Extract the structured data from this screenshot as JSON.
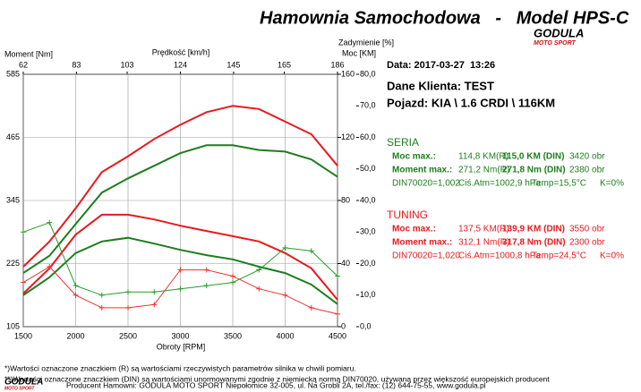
{
  "chart_data": {
    "type": "line",
    "title": "Hamownia Samochodowa   -   Model HPS-C",
    "x_label": "Obroty [RPM]",
    "y_label": "Moment [Nm]",
    "x2_label": "Prędkość [km/h]",
    "y2_label": "Moc [KM]",
    "y3_label": "Zadymienie [%]",
    "x": [
      1500,
      1750,
      2000,
      2250,
      2500,
      2750,
      3000,
      3250,
      3500,
      3750,
      4000,
      4250,
      4500
    ],
    "xlim": [
      1500,
      4500
    ],
    "xticks": [
      1500,
      2000,
      2500,
      3000,
      3500,
      4000,
      4500
    ],
    "x2lim": [
      62,
      186
    ],
    "x2ticks": [
      62,
      83,
      103,
      124,
      145,
      165,
      186
    ],
    "ylim": [
      105,
      585
    ],
    "yticks": [
      105,
      225,
      345,
      465,
      585
    ],
    "y2lim": [
      0,
      160
    ],
    "y2ticks": [
      0,
      40,
      80,
      120,
      160
    ],
    "y3lim": [
      0,
      80
    ],
    "y3ticks": [
      {
        "value": 0,
        "label": "0,0"
      },
      {
        "value": 10,
        "label": "10,0"
      },
      {
        "value": 20,
        "label": "20,0"
      },
      {
        "value": 30,
        "label": "30,0"
      },
      {
        "value": 40,
        "label": "40,0"
      },
      {
        "value": 50,
        "label": "50,0"
      },
      {
        "value": 60,
        "label": "60,0"
      },
      {
        "value": 70,
        "label": "70,0"
      },
      {
        "value": 80,
        "label": "80,0"
      }
    ],
    "grid": true,
    "series": [
      {
        "color": "#e8191e",
        "axis": "y2",
        "values": [
          38,
          54,
          75,
          98,
          108,
          119,
          128,
          136,
          140,
          138,
          130,
          122,
          102
        ]
      },
      {
        "color": "#1e7d1e",
        "axis": "y2",
        "values": [
          34,
          45,
          65,
          85,
          94,
          102,
          110,
          115,
          115,
          112,
          111,
          106,
          95
        ]
      },
      {
        "color": "#e8191e",
        "axis": "y",
        "values": [
          168,
          216,
          280,
          318,
          318,
          309,
          297,
          287,
          277,
          267,
          245,
          216,
          156
        ]
      },
      {
        "color": "#1e7d1e",
        "axis": "y",
        "values": [
          165,
          199,
          245,
          267,
          274,
          263,
          251,
          241,
          233,
          219,
          207,
          185,
          148
        ]
      },
      {
        "color": "#2a9a2a",
        "axis": "y3",
        "marker": "+",
        "values": [
          30,
          33,
          13,
          10,
          11,
          11,
          12,
          13,
          14,
          18,
          25,
          24,
          16
        ]
      },
      {
        "color": "#f03030",
        "axis": "y3",
        "marker": "+",
        "values": [
          14,
          19,
          10,
          6,
          6,
          7,
          18,
          18,
          16,
          12,
          10,
          6,
          4
        ]
      }
    ]
  },
  "logo": {
    "name": "GODULA",
    "tagline": "MOTO SPORT"
  },
  "report": {
    "date": "Data: 2017-03-27  13:26",
    "client": "Dane Klienta: TEST",
    "vehicle": "Pojazd: KIA \\ 1.6 CRDI \\ 116KM",
    "blocks": [
      {
        "title": "SERIA",
        "rows": [
          [
            "Moc max.:",
            "114,8 KM(R)",
            "115,0 KM (DIN)",
            "3420 obr"
          ],
          [
            "Moment max.:",
            "271,2 Nm(R)",
            "271,8 Nm (DIN)",
            "2380 obr"
          ],
          [
            "DIN70020=1,002",
            "Ciś.Atm=1002,9 hPa",
            "Temp=15,5°C",
            "K=0%"
          ]
        ]
      },
      {
        "title": "TUNING",
        "rows": [
          [
            "Moc max.:",
            "137,5 KM(R)",
            "139,9 KM (DIN)",
            "3550 obr"
          ],
          [
            "Moment max.:",
            "312,1 Nm(R)",
            "317,8 Nm (DIN)",
            "2300 obr"
          ],
          [
            "DIN70020=1,020",
            "Ciś.Atm=1000,8 hPa",
            "Temp=24,5°C",
            "K=0%"
          ]
        ]
      }
    ]
  },
  "footer": {
    "note_r": "*)Wartości oznaczone znaczkiem (R) są wartościami rzeczywistych parametrów silnika w chwili pomiaru.",
    "note_din": "**)Wartości oznaczone znaczkiem (DIN) są wartościami unormowanymi zgodnie z niemiecką normą DIN70020, używaną przez większość europejskich producent",
    "producer": "Producent Hamowni: GODULA MOTO SPORT Niepołomice 32-005, ul. Na Grobli 2A, tel./fax: (12) 644-75-55, www.godula.pl"
  }
}
